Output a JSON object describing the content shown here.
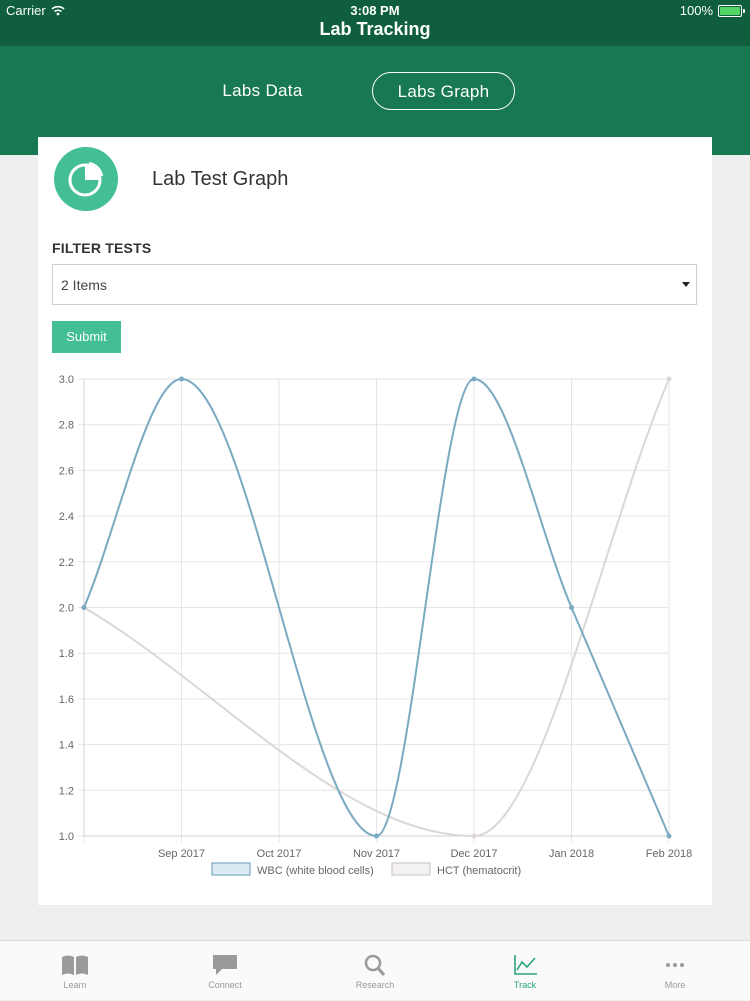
{
  "status_bar": {
    "carrier": "Carrier",
    "time": "3:08 PM",
    "battery": "100%"
  },
  "nav": {
    "title": "Lab Tracking"
  },
  "segments": [
    {
      "label": "Labs Data",
      "selected": false
    },
    {
      "label": "Labs Graph",
      "selected": true
    }
  ],
  "card": {
    "icon": "pie-chart-icon",
    "title": "Lab Test Graph",
    "filter_label": "FILTER TESTS",
    "filter_value": "2 Items",
    "submit_label": "Submit"
  },
  "colors": {
    "brand": "#177851",
    "accent": "#43be96",
    "wbc_line": "#7aaac2",
    "hct_line": "#dcd6d8"
  },
  "chart_data": {
    "type": "line",
    "x": [
      "",
      "Sep 2017",
      "Oct 2017",
      "Nov 2017",
      "Dec 2017",
      "Jan 2018",
      "Feb 2018"
    ],
    "y_ticks": [
      "3.0",
      "2.8",
      "2.6",
      "2.4",
      "2.2",
      "2.0",
      "1.8",
      "1.6",
      "1.4",
      "1.2",
      "1.0"
    ],
    "ylim": [
      1.0,
      3.0
    ],
    "grid": true,
    "legend": "bottom",
    "series": [
      {
        "name": "WBC (white blood cells)",
        "points": [
          [
            0,
            2.0
          ],
          [
            1,
            3.0
          ],
          [
            3,
            1.0
          ],
          [
            4,
            3.0
          ],
          [
            5,
            2.0
          ],
          [
            6,
            1.0
          ]
        ]
      },
      {
        "name": "HCT (hematocrit)",
        "points": [
          [
            0,
            2.0
          ],
          [
            4,
            1.0
          ],
          [
            6,
            3.0
          ]
        ]
      }
    ]
  },
  "tabs": [
    {
      "label": "Learn",
      "icon": "book-icon",
      "active": false
    },
    {
      "label": "Connect",
      "icon": "chat-bubble-icon",
      "active": false
    },
    {
      "label": "Research",
      "icon": "search-icon",
      "active": false
    },
    {
      "label": "Track",
      "icon": "line-chart-icon",
      "active": true
    },
    {
      "label": "More",
      "icon": "more-dots-icon",
      "active": false
    }
  ]
}
